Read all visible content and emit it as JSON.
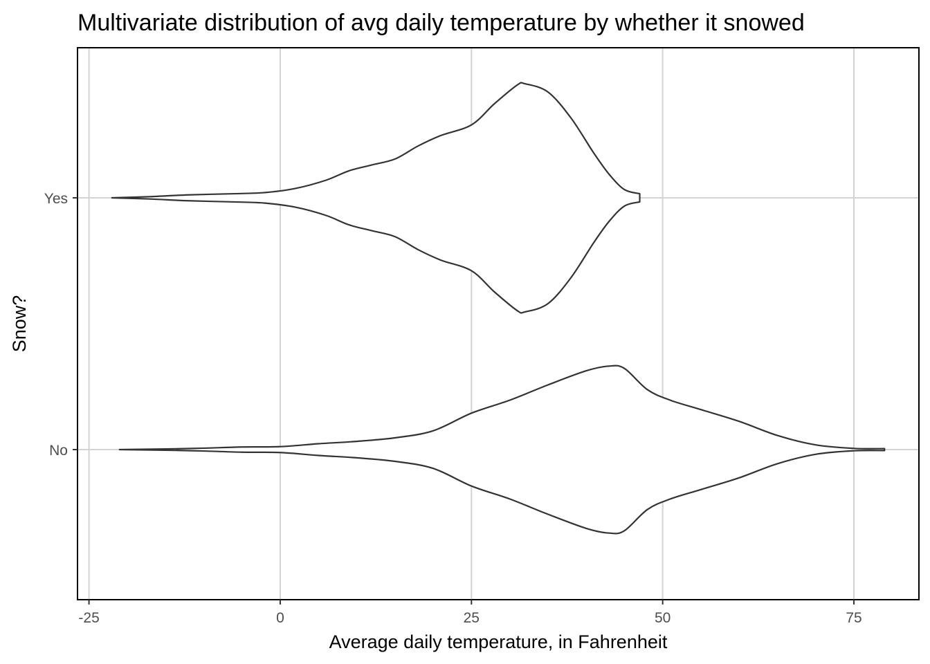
{
  "chart_data": {
    "type": "violin",
    "title": "Multivariate distribution of avg daily temperature by whether it snowed",
    "xlabel": "Average daily temperature, in Fahrenheit",
    "ylabel": "Snow?",
    "xlim": [
      -26.5,
      83.5
    ],
    "x_ticks": [
      -25,
      0,
      25,
      50,
      75
    ],
    "x_tick_labels": [
      "-25",
      "0",
      "25",
      "50",
      "75"
    ],
    "categories": [
      "Yes",
      "No"
    ],
    "grid": true,
    "colors": {
      "outline": "#333333",
      "fill": "#ffffff",
      "grid": "#d3d3d3"
    },
    "series": [
      {
        "name": "Yes",
        "min": -22,
        "max": 47,
        "density": [
          [
            -22,
            0.0
          ],
          [
            -17,
            0.01
          ],
          [
            -12,
            0.025
          ],
          [
            -6,
            0.035
          ],
          [
            -2,
            0.045
          ],
          [
            2,
            0.08
          ],
          [
            6,
            0.15
          ],
          [
            9,
            0.23
          ],
          [
            12,
            0.28
          ],
          [
            15,
            0.33
          ],
          [
            18,
            0.44
          ],
          [
            21,
            0.53
          ],
          [
            25,
            0.62
          ],
          [
            28,
            0.8
          ],
          [
            31,
            0.96
          ],
          [
            32,
            0.97
          ],
          [
            35,
            0.9
          ],
          [
            38,
            0.68
          ],
          [
            41,
            0.38
          ],
          [
            43,
            0.2
          ],
          [
            45,
            0.07
          ],
          [
            47,
            0.035
          ]
        ]
      },
      {
        "name": "No",
        "min": -21,
        "max": 79,
        "density": [
          [
            -21,
            0.0
          ],
          [
            -15,
            0.005
          ],
          [
            -10,
            0.012
          ],
          [
            -5,
            0.022
          ],
          [
            0,
            0.025
          ],
          [
            5,
            0.05
          ],
          [
            10,
            0.07
          ],
          [
            15,
            0.1
          ],
          [
            20,
            0.16
          ],
          [
            25,
            0.31
          ],
          [
            30,
            0.42
          ],
          [
            35,
            0.55
          ],
          [
            40,
            0.67
          ],
          [
            43,
            0.71
          ],
          [
            45,
            0.69
          ],
          [
            48,
            0.51
          ],
          [
            51,
            0.42
          ],
          [
            55,
            0.34
          ],
          [
            60,
            0.24
          ],
          [
            65,
            0.12
          ],
          [
            70,
            0.04
          ],
          [
            75,
            0.01
          ],
          [
            79,
            0.008
          ]
        ]
      }
    ]
  }
}
